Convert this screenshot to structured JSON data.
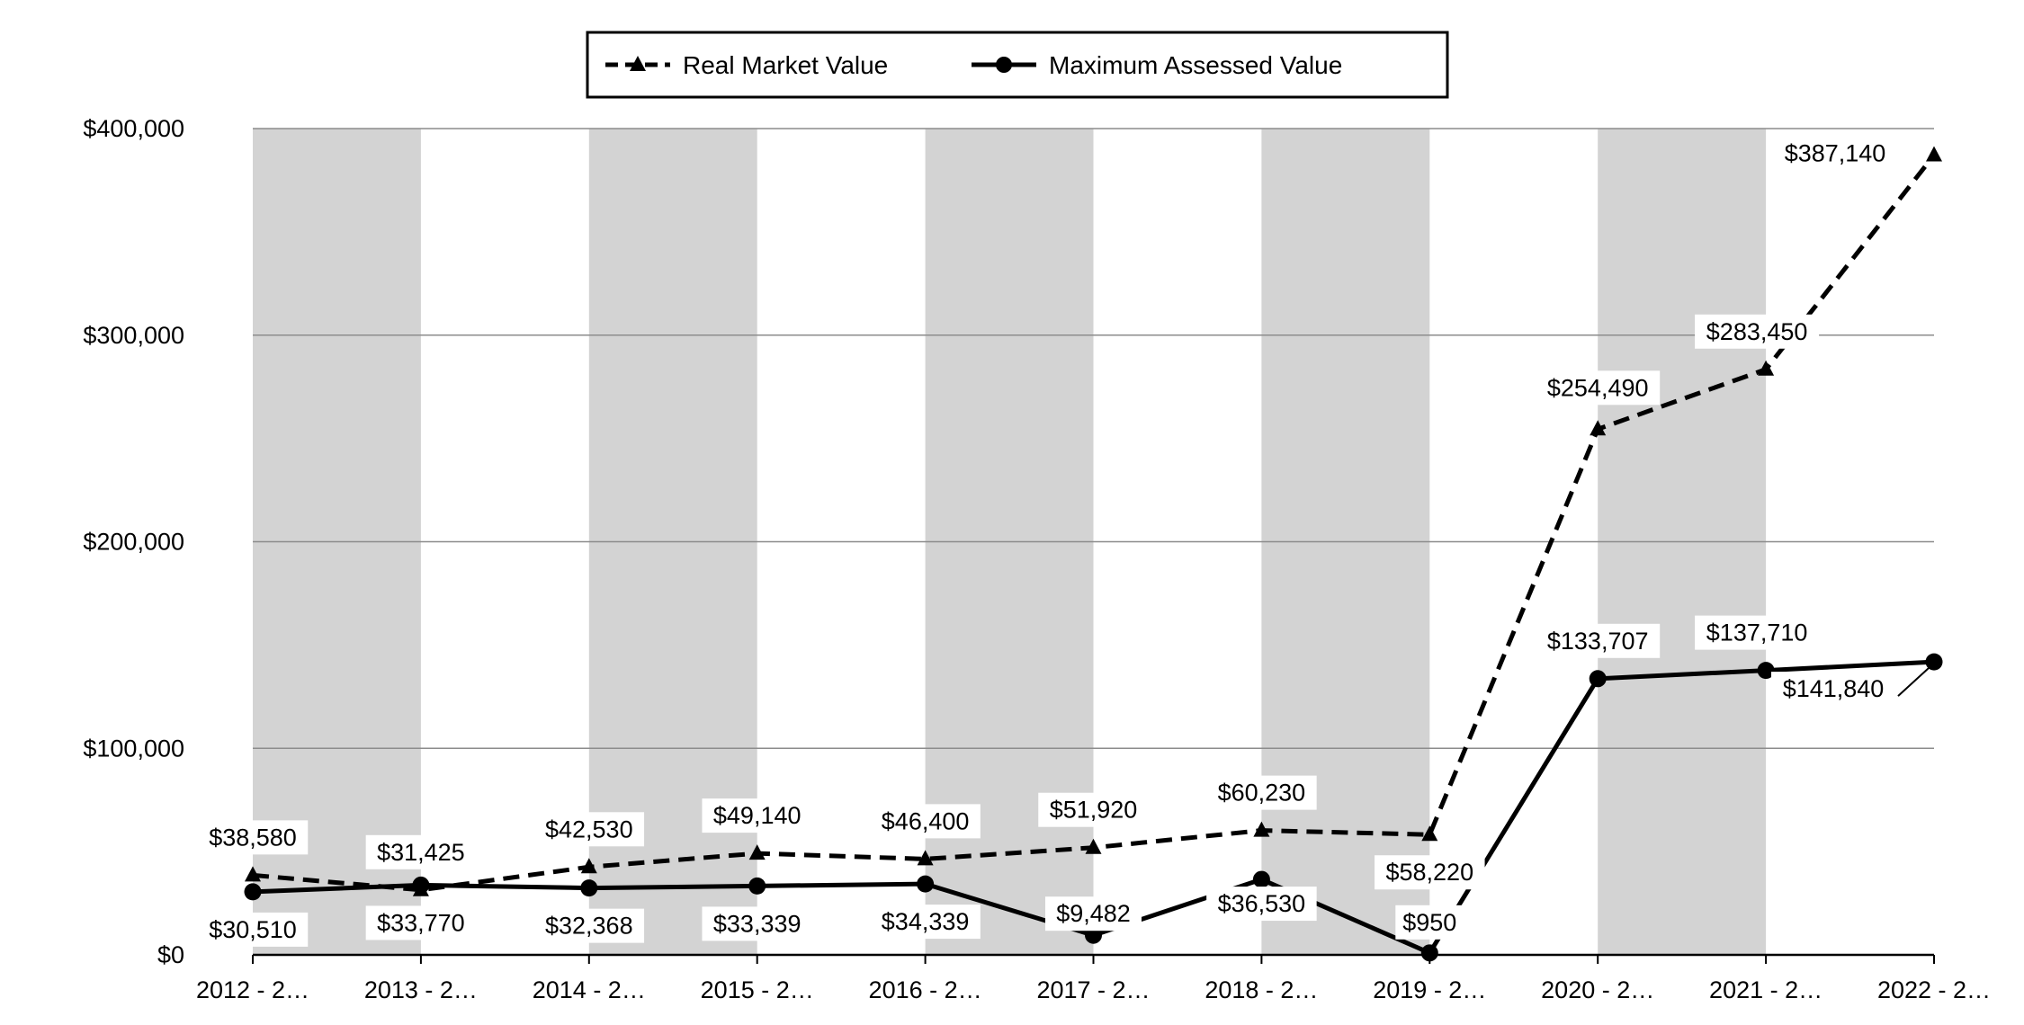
{
  "chart_data": {
    "type": "line",
    "title": "",
    "xlabel": "",
    "ylabel": "",
    "categories": [
      "2012 - 2…",
      "2013 - 2…",
      "2014 - 2…",
      "2015 - 2…",
      "2016 - 2…",
      "2017 - 2…",
      "2018 - 2…",
      "2019 - 2…",
      "2020 - 2…",
      "2021 - 2…",
      "2022 - 2…"
    ],
    "ylim": [
      0,
      400000
    ],
    "yticks": [
      0,
      100000,
      200000,
      300000,
      400000
    ],
    "ytick_labels": [
      "$0",
      "$100,000",
      "$200,000",
      "$300,000",
      "$400,000"
    ],
    "grid": "horizontal",
    "band_fill": "#d3d3d3",
    "legend_position": "top-center",
    "series": [
      {
        "name": "Real Market Value",
        "style": "dashed",
        "marker": "triangle",
        "color": "#000000",
        "values": [
          38580,
          31425,
          42530,
          49140,
          46400,
          51920,
          60230,
          58220,
          254490,
          283450,
          387140
        ],
        "labels": [
          "$38,580",
          "$31,425",
          "$42,530",
          "$49,140",
          "$46,400",
          "$51,920",
          "$60,230",
          "$58,220",
          "$254,490",
          "$283,450",
          "$387,140"
        ]
      },
      {
        "name": "Maximum Assessed Value",
        "style": "solid",
        "marker": "circle",
        "color": "#000000",
        "values": [
          30510,
          33770,
          32368,
          33339,
          34339,
          9482,
          36530,
          950,
          133707,
          137710,
          141840
        ],
        "labels": [
          "$30,510",
          "$33,770",
          "$32,368",
          "$33,339",
          "$34,339",
          "$9,482",
          "$36,530",
          "$950",
          "$133,707",
          "$137,710",
          "$141,840"
        ]
      }
    ]
  }
}
